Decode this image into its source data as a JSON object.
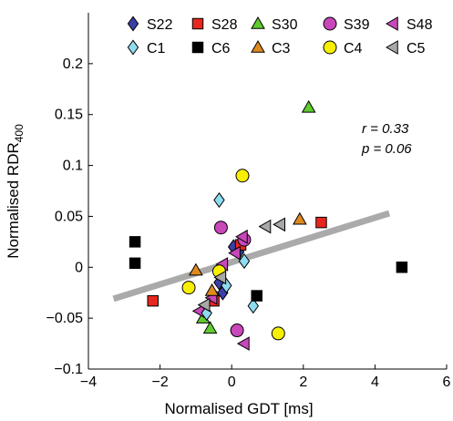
{
  "chart_data": {
    "type": "scatter",
    "xlabel": "Normalised GDT [ms]",
    "ylabel_main": "Normalised RDR",
    "ylabel_sub": "400",
    "xlim": [
      -4,
      6
    ],
    "ylim": [
      -0.1,
      0.25
    ],
    "x_ticks": [
      -4,
      -2,
      0,
      2,
      4,
      6
    ],
    "x_tick_labels": [
      "−4",
      "−2",
      "0",
      "2",
      "4",
      "6"
    ],
    "y_ticks": [
      -0.1,
      -0.05,
      0,
      0.05,
      0.1,
      0.15,
      0.2
    ],
    "y_tick_labels": [
      "−0.1",
      "−0.05",
      "0",
      "0.05",
      "0.1",
      "0.15",
      "0.2"
    ],
    "grid": false,
    "legend_position": "top",
    "annotations": {
      "r": "r = 0.33",
      "p": "p = 0.06"
    },
    "regression_line": {
      "x": [
        -3.3,
        4.4
      ],
      "y": [
        -0.031,
        0.053
      ],
      "color": "#aaaaaa"
    },
    "series": [
      {
        "name": "S22",
        "marker": "diamond",
        "color": "#3a3fa8",
        "points": [
          [
            0.05,
            0.02
          ],
          [
            0.2,
            0.015
          ],
          [
            -0.35,
            -0.015
          ],
          [
            -0.25,
            -0.025
          ]
        ]
      },
      {
        "name": "S28",
        "marker": "square",
        "color": "#e8261e",
        "points": [
          [
            -2.2,
            -0.033
          ],
          [
            2.5,
            0.044
          ],
          [
            0.25,
            0.022
          ],
          [
            -0.5,
            -0.033
          ]
        ]
      },
      {
        "name": "S30",
        "marker": "triangle-up",
        "color": "#5fcb2f",
        "points": [
          [
            2.15,
            0.157
          ],
          [
            -0.6,
            -0.06
          ],
          [
            -0.8,
            -0.05
          ]
        ]
      },
      {
        "name": "S39",
        "marker": "circle",
        "color": "#c847b9",
        "points": [
          [
            -0.3,
            0.039
          ],
          [
            0.35,
            0.027
          ],
          [
            0.15,
            -0.062
          ]
        ]
      },
      {
        "name": "S48",
        "marker": "triangle-left",
        "color": "#c847b9",
        "points": [
          [
            0.3,
            0.03
          ],
          [
            -0.25,
            0.003
          ],
          [
            0.1,
            0.014
          ],
          [
            0.35,
            -0.075
          ],
          [
            -0.55,
            -0.03
          ],
          [
            -0.9,
            -0.043
          ]
        ]
      },
      {
        "name": "C1",
        "marker": "diamond",
        "color": "#8fdcf0",
        "points": [
          [
            -0.35,
            0.066
          ],
          [
            0.35,
            0.006
          ],
          [
            0.6,
            -0.038
          ],
          [
            -0.15,
            -0.018
          ],
          [
            -0.7,
            -0.045
          ]
        ]
      },
      {
        "name": "C6",
        "marker": "square",
        "color": "#000000",
        "points": [
          [
            -2.7,
            0.025
          ],
          [
            -2.7,
            0.004
          ],
          [
            0.7,
            -0.028
          ],
          [
            4.75,
            0.0
          ]
        ]
      },
      {
        "name": "C3",
        "marker": "triangle-up",
        "color": "#e08a1e",
        "points": [
          [
            1.9,
            0.047
          ],
          [
            -1.0,
            -0.003
          ],
          [
            -0.55,
            -0.023
          ]
        ]
      },
      {
        "name": "C4",
        "marker": "circle",
        "color": "#f8f000",
        "points": [
          [
            0.3,
            0.09
          ],
          [
            -1.2,
            -0.02
          ],
          [
            1.3,
            -0.065
          ],
          [
            -0.35,
            -0.004
          ]
        ]
      },
      {
        "name": "C5",
        "marker": "triangle-left",
        "color": "#a8a8a8",
        "points": [
          [
            1.35,
            0.042
          ],
          [
            0.95,
            0.04
          ],
          [
            -0.3,
            -0.01
          ],
          [
            -0.75,
            -0.037
          ]
        ]
      }
    ]
  }
}
